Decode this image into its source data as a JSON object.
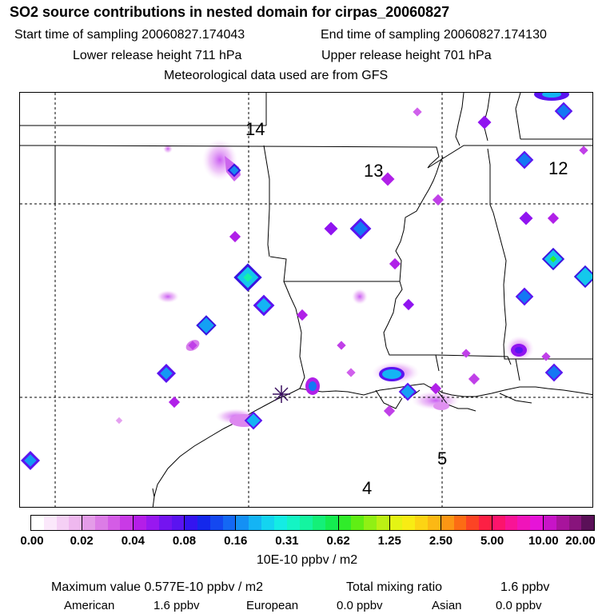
{
  "header": {
    "title": "SO2 source contributions in nested domain for cirpas_20060827",
    "start_label": "Start time of sampling 20060827.174043",
    "end_label": "End time of sampling 20060827.174130",
    "lower_label": "Lower release height  711 hPa",
    "upper_label": "Upper release height  701 hPa",
    "met_label": "Meteorological data used are from GFS"
  },
  "map": {
    "region_labels": [
      "14",
      "13",
      "12",
      "5",
      "4"
    ]
  },
  "colorbar": {
    "ticks": [
      "0.00",
      "0.02",
      "0.04",
      "0.08",
      "0.16",
      "0.31",
      "0.62",
      "1.25",
      "2.50",
      "5.00",
      "10.00",
      "20.00"
    ],
    "segments": [
      [
        "#ffffff",
        "#fbe8fb",
        "#f5d0f5",
        "#efb8ef"
      ],
      [
        "#e49ce8",
        "#dc7ce6",
        "#d45ce6",
        "#c93ae6"
      ],
      [
        "#b41ee8",
        "#9818f0",
        "#7414f0",
        "#5a14f0"
      ],
      [
        "#3414f0",
        "#1428ec",
        "#1448f0",
        "#1468f4"
      ],
      [
        "#1490f4",
        "#14b4f4",
        "#14d4f0",
        "#14ece4"
      ],
      [
        "#14f4c4",
        "#14f4a0",
        "#14f078",
        "#14ec50"
      ],
      [
        "#30ec2a",
        "#60ee14",
        "#90f014",
        "#bcf014"
      ],
      [
        "#e4f414",
        "#f8ec14",
        "#fcd414",
        "#fcb814"
      ],
      [
        "#fc9614",
        "#fc6c14",
        "#fc4424",
        "#fc2044"
      ],
      [
        "#fc146c",
        "#f81496",
        "#f014ba",
        "#e614d8"
      ],
      [
        "#c814c8",
        "#a8149c",
        "#88147c",
        "#5a1058"
      ]
    ],
    "units": "10E-10 ppbv / m2"
  },
  "footer": {
    "max_label": "Maximum value  0.577E-10 ppbv / m2",
    "total_label": "Total mixing ratio",
    "total_value": "1.6 ppbv",
    "american_label": "American",
    "american_value": "1.6 ppbv",
    "european_label": "European",
    "european_value": "0.0 ppbv",
    "asian_label": "Asian",
    "asian_value": "0.0 ppbv"
  }
}
